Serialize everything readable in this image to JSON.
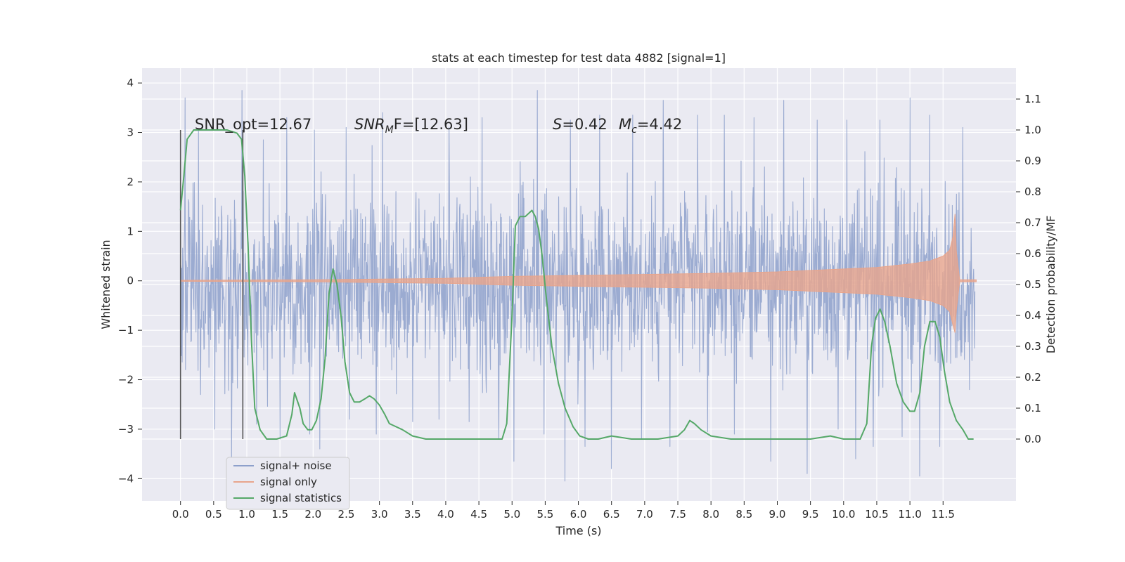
{
  "chart_data": {
    "type": "line",
    "title": "stats at each timestep for test data 4882 [signal=1]",
    "xlabel": "Time (s)",
    "ylabel": "Whitened strain",
    "ylabel_right": "Detection probability/MF",
    "xlim": [
      -0.58,
      12.6
    ],
    "ylim": [
      -4.45,
      4.3
    ],
    "ylim_right": [
      -0.2,
      1.2
    ],
    "x_ticks": [
      0.0,
      0.5,
      1.0,
      1.5,
      2.0,
      2.5,
      3.0,
      3.5,
      4.0,
      4.5,
      5.0,
      5.5,
      6.0,
      6.5,
      7.0,
      7.5,
      8.0,
      8.5,
      9.0,
      9.5,
      10.0,
      10.5,
      11.0,
      11.5
    ],
    "x_tick_labels": [
      "0.0",
      "0.5",
      "1.0",
      "1.5",
      "2.0",
      "2.5",
      "3.0",
      "3.5",
      "4.0",
      "4.5",
      "5.0",
      "5.5",
      "6.0",
      "6.5",
      "7.0",
      "7.5",
      "8.0",
      "8.5",
      "9.0",
      "9.5",
      "10.0",
      "10.5",
      "11.0",
      "11.5"
    ],
    "y_ticks": [
      -4,
      -3,
      -2,
      -1,
      0,
      1,
      2,
      3,
      4
    ],
    "y_tick_labels": [
      "−4",
      "−3",
      "−2",
      "−1",
      "0",
      "1",
      "2",
      "3",
      "4"
    ],
    "y_right_ticks": [
      0.0,
      0.1,
      0.2,
      0.3,
      0.4,
      0.5,
      0.6,
      0.7,
      0.8,
      0.9,
      1.0,
      1.1
    ],
    "y_right_tick_labels": [
      "0.0",
      "0.1",
      "0.2",
      "0.3",
      "0.4",
      "0.5",
      "0.6",
      "0.7",
      "0.8",
      "0.9",
      "1.0",
      "1.1"
    ],
    "grid": true,
    "legend_position": "lower-left",
    "annotations": {
      "snr_opt": "SNR_opt=12.67",
      "snr_mf_prefix": "SNR",
      "snr_mf_sub": "M",
      "snr_mf_rest": "F=[12.63]",
      "s_label": "S",
      "s_value": "=0.42",
      "mc_label": "M",
      "mc_sub": "c",
      "mc_value": "=4.42"
    },
    "vertical_markers": [
      {
        "x": 0.0,
        "y_top": 3.05,
        "y_bottom": -3.2
      },
      {
        "x": 0.94,
        "y_top": 3.05,
        "y_bottom": -3.2
      }
    ],
    "series": [
      {
        "name": "signal+ noise",
        "color": "#8da0cb",
        "x_range": [
          0.0,
          11.98
        ],
        "upper_peaks": [
          [
            0.07,
            3.7
          ],
          [
            0.27,
            3.05
          ],
          [
            0.52,
            3.3
          ],
          [
            0.93,
            3.85
          ],
          [
            1.25,
            2.85
          ],
          [
            1.6,
            3.3
          ],
          [
            2.02,
            3.05
          ],
          [
            2.5,
            3.1
          ],
          [
            3.05,
            3.4
          ],
          [
            3.5,
            3.7
          ],
          [
            4.05,
            3.1
          ],
          [
            4.55,
            3.3
          ],
          [
            5.38,
            3.85
          ],
          [
            5.88,
            3.25
          ],
          [
            6.32,
            3.35
          ],
          [
            6.82,
            3.35
          ],
          [
            7.28,
            3.65
          ],
          [
            7.8,
            3.35
          ],
          [
            8.2,
            3.35
          ],
          [
            8.65,
            3.3
          ],
          [
            9.1,
            3.65
          ],
          [
            9.6,
            3.25
          ],
          [
            10.05,
            3.25
          ],
          [
            10.55,
            3.25
          ],
          [
            11.0,
            3.7
          ],
          [
            11.3,
            3.35
          ],
          [
            11.45,
            3.35
          ],
          [
            11.8,
            3.1
          ]
        ],
        "lower_peaks": [
          [
            0.3,
            -2.3
          ],
          [
            0.52,
            -3.0
          ],
          [
            0.77,
            -3.6
          ],
          [
            1.15,
            -2.9
          ],
          [
            1.5,
            -3.2
          ],
          [
            1.95,
            -3.1
          ],
          [
            2.1,
            -3.4
          ],
          [
            2.55,
            -2.8
          ],
          [
            2.95,
            -3.1
          ],
          [
            3.5,
            -2.85
          ],
          [
            3.9,
            -2.8
          ],
          [
            4.35,
            -2.85
          ],
          [
            4.8,
            -3.2
          ],
          [
            5.03,
            -3.65
          ],
          [
            5.48,
            -3.1
          ],
          [
            5.8,
            -4.05
          ],
          [
            6.1,
            -3.35
          ],
          [
            6.5,
            -3.8
          ],
          [
            6.95,
            -3.2
          ],
          [
            7.38,
            -3.35
          ],
          [
            7.95,
            -3.05
          ],
          [
            8.35,
            -3.1
          ],
          [
            8.9,
            -3.65
          ],
          [
            9.45,
            -3.9
          ],
          [
            9.92,
            -3.0
          ],
          [
            10.18,
            -3.6
          ],
          [
            10.45,
            -3.35
          ],
          [
            10.88,
            -3.15
          ],
          [
            11.15,
            -3.95
          ],
          [
            11.45,
            -3.35
          ],
          [
            11.9,
            -2.2
          ]
        ]
      },
      {
        "name": "signal only",
        "color": "#e8a58c",
        "x": [
          0.0,
          2.0,
          4.0,
          5.0,
          6.0,
          7.0,
          8.0,
          9.0,
          10.0,
          10.5,
          11.0,
          11.3,
          11.5,
          11.6,
          11.65,
          11.68,
          11.7,
          11.75,
          12.0
        ],
        "upper": [
          0.01,
          0.02,
          0.05,
          0.09,
          0.11,
          0.13,
          0.15,
          0.18,
          0.24,
          0.27,
          0.34,
          0.4,
          0.5,
          0.62,
          0.9,
          1.35,
          0.6,
          0.02,
          0.02
        ],
        "lower": [
          -0.01,
          -0.02,
          -0.05,
          -0.09,
          -0.11,
          -0.13,
          -0.15,
          -0.18,
          -0.24,
          -0.27,
          -0.34,
          -0.4,
          -0.5,
          -0.62,
          -0.9,
          -1.05,
          -0.6,
          -0.02,
          -0.02
        ]
      },
      {
        "name": "signal statistics",
        "color": "#55a868",
        "axis": "right",
        "x": [
          0.0,
          0.05,
          0.1,
          0.2,
          0.35,
          0.5,
          0.7,
          0.85,
          0.92,
          0.97,
          1.02,
          1.07,
          1.12,
          1.2,
          1.3,
          1.45,
          1.6,
          1.68,
          1.72,
          1.8,
          1.85,
          1.92,
          1.98,
          2.05,
          2.12,
          2.18,
          2.24,
          2.3,
          2.36,
          2.42,
          2.48,
          2.55,
          2.62,
          2.7,
          2.78,
          2.85,
          2.92,
          3.0,
          3.08,
          3.15,
          3.25,
          3.35,
          3.5,
          3.7,
          4.0,
          4.5,
          4.85,
          4.92,
          5.0,
          5.05,
          5.12,
          5.2,
          5.3,
          5.35,
          5.4,
          5.45,
          5.52,
          5.6,
          5.7,
          5.8,
          5.92,
          6.02,
          6.15,
          6.3,
          6.5,
          6.8,
          7.2,
          7.5,
          7.6,
          7.68,
          7.75,
          7.85,
          8.0,
          8.3,
          9.0,
          9.5,
          9.8,
          10.0,
          10.25,
          10.35,
          10.42,
          10.48,
          10.55,
          10.62,
          10.7,
          10.8,
          10.9,
          11.0,
          11.07,
          11.15,
          11.22,
          11.3,
          11.38,
          11.45,
          11.52,
          11.6,
          11.7,
          11.8,
          11.88,
          11.96
        ],
        "values": [
          0.74,
          0.85,
          0.97,
          1.0,
          1.0,
          1.0,
          1.0,
          0.99,
          0.97,
          0.85,
          0.62,
          0.32,
          0.1,
          0.03,
          0.0,
          0.0,
          0.01,
          0.08,
          0.15,
          0.1,
          0.05,
          0.03,
          0.03,
          0.06,
          0.13,
          0.26,
          0.47,
          0.55,
          0.5,
          0.4,
          0.25,
          0.15,
          0.12,
          0.12,
          0.13,
          0.14,
          0.13,
          0.11,
          0.08,
          0.05,
          0.04,
          0.03,
          0.01,
          0.0,
          0.0,
          0.0,
          0.0,
          0.05,
          0.4,
          0.69,
          0.72,
          0.72,
          0.74,
          0.72,
          0.68,
          0.6,
          0.45,
          0.3,
          0.18,
          0.1,
          0.04,
          0.01,
          0.0,
          0.0,
          0.01,
          0.0,
          0.0,
          0.01,
          0.03,
          0.06,
          0.05,
          0.03,
          0.01,
          0.0,
          0.0,
          0.0,
          0.01,
          0.0,
          0.0,
          0.05,
          0.3,
          0.39,
          0.42,
          0.38,
          0.3,
          0.18,
          0.12,
          0.09,
          0.09,
          0.15,
          0.3,
          0.38,
          0.38,
          0.33,
          0.22,
          0.12,
          0.06,
          0.03,
          0.0,
          0.0
        ]
      }
    ]
  }
}
